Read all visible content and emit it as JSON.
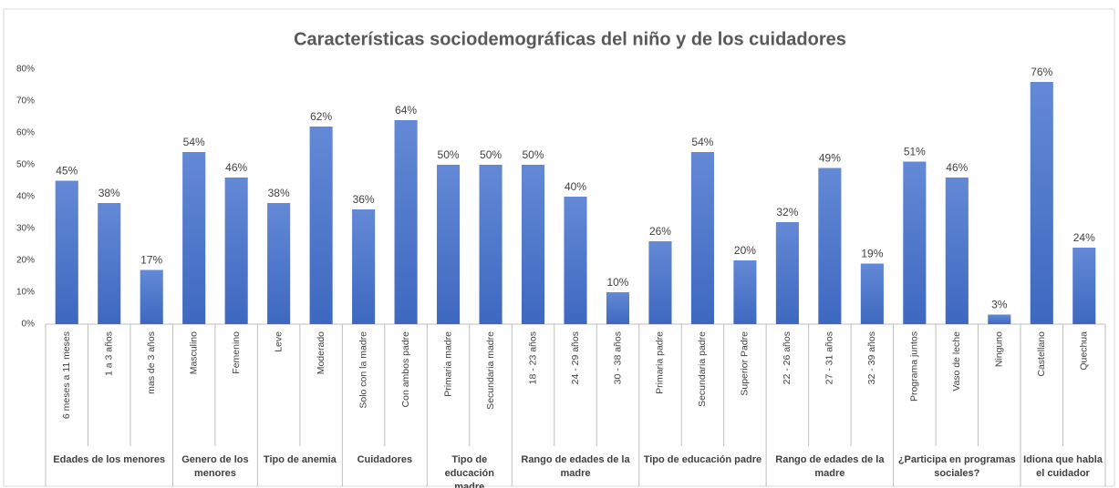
{
  "chart_data": {
    "type": "bar",
    "title": "Características sociodemográficas del niño y de los cuidadores",
    "color": "#4472c4",
    "grid": false,
    "ylim": [
      0,
      80
    ],
    "yticks": [
      {
        "value": 0,
        "label": "0%"
      },
      {
        "value": 10,
        "label": "10%"
      },
      {
        "value": 20,
        "label": "20%"
      },
      {
        "value": 30,
        "label": "30%"
      },
      {
        "value": 40,
        "label": "40%"
      },
      {
        "value": 50,
        "label": "50%"
      },
      {
        "value": 60,
        "label": "60%"
      },
      {
        "value": 70,
        "label": "70%"
      },
      {
        "value": 80,
        "label": "80%"
      }
    ],
    "groups": [
      {
        "label": "Edades de los menores",
        "categories": [
          "6 meses a 11 meses",
          "1 a 3 años",
          "mas de 3 años"
        ],
        "values": [
          45,
          38,
          17
        ],
        "value_labels": [
          "45%",
          "38%",
          "17%"
        ]
      },
      {
        "label": "Genero de los menores",
        "categories": [
          "Masculino",
          "Femenino"
        ],
        "values": [
          54,
          46
        ],
        "value_labels": [
          "54%",
          "46%"
        ]
      },
      {
        "label": "Tipo de anemia",
        "categories": [
          "Leve",
          "Moderado"
        ],
        "values": [
          38,
          62
        ],
        "value_labels": [
          "38%",
          "62%"
        ]
      },
      {
        "label": "Cuidadores",
        "categories": [
          "Solo con la madre",
          "Con ambos padre"
        ],
        "values": [
          36,
          64
        ],
        "value_labels": [
          "36%",
          "64%"
        ]
      },
      {
        "label": "Tipo de educación madre",
        "categories": [
          "Primaria madre",
          "Secundaria madre"
        ],
        "values": [
          50,
          50
        ],
        "value_labels": [
          "50%",
          "50%"
        ]
      },
      {
        "label": "Rango de edades de la madre",
        "categories": [
          "18 - 23 años",
          "24 - 29 años",
          "30 - 38 años"
        ],
        "values": [
          50,
          40,
          10
        ],
        "value_labels": [
          "50%",
          "40%",
          "10%"
        ]
      },
      {
        "label": "Tipo de educación padre",
        "categories": [
          "Primaria padre",
          "Secundaria padre",
          "Superior Padre"
        ],
        "values": [
          26,
          54,
          20
        ],
        "value_labels": [
          "26%",
          "54%",
          "20%"
        ]
      },
      {
        "label": "Rango de edades de la madre",
        "categories": [
          "22 - 26 años",
          "27 - 31 años",
          "32 - 39 años"
        ],
        "values": [
          32,
          49,
          19
        ],
        "value_labels": [
          "32%",
          "49%",
          "19%"
        ]
      },
      {
        "label": "¿Participa en programas sociales?",
        "categories": [
          "Programa juntos",
          "Vaso de leche",
          "Ninguno"
        ],
        "values": [
          51,
          46,
          3
        ],
        "value_labels": [
          "51%",
          "46%",
          "3%"
        ]
      },
      {
        "label": "Idiona que habla el cuidador",
        "categories": [
          "Castellano",
          "Quechua"
        ],
        "values": [
          76,
          24
        ],
        "value_labels": [
          "76%",
          "24%"
        ]
      }
    ]
  }
}
